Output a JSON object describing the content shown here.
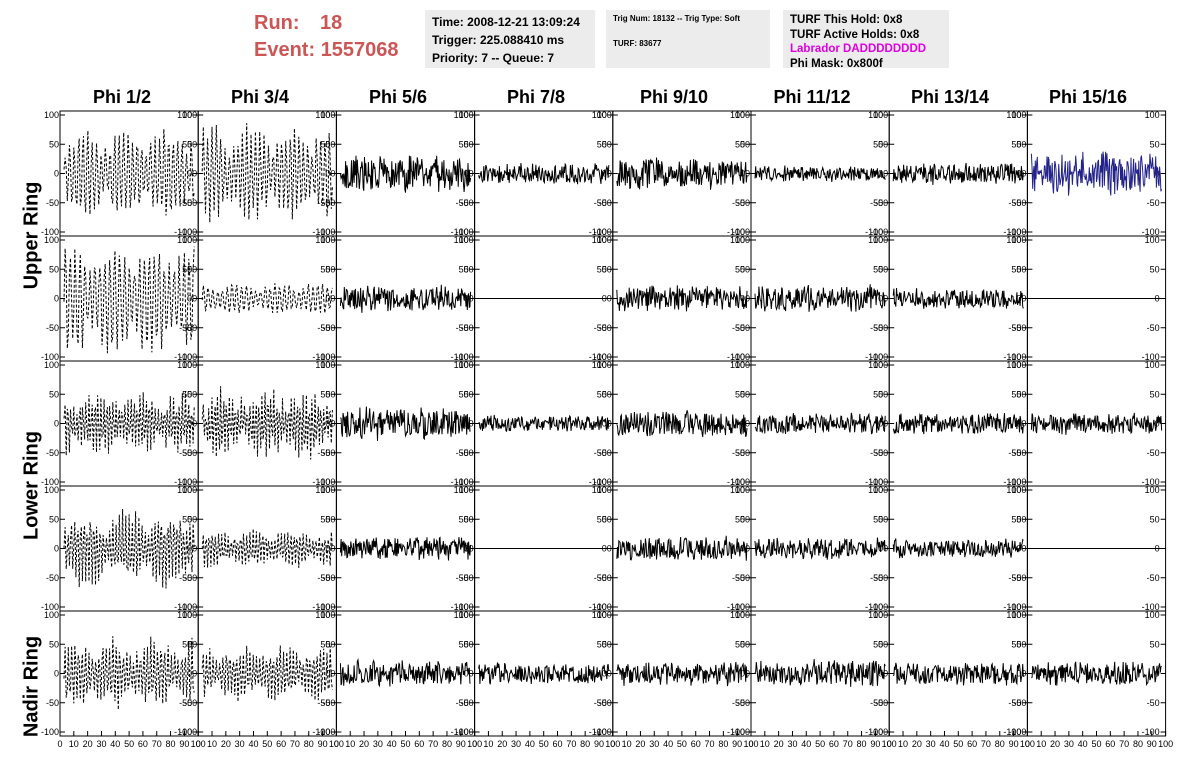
{
  "header": {
    "run_label": "Run:",
    "run_value": "18",
    "event_label": "Event:",
    "event_value": "1557068"
  },
  "info_time": {
    "time": "Time: 2008-12-21 13:09:24",
    "trigger": "Trigger: 225.088410 ms",
    "priority": "Priority: 7 -- Queue: 7"
  },
  "info_trig": {
    "trig": "Trig Num: 18132 -- Trig Type: Soft",
    "turf": "TURF: 83677"
  },
  "info_turf": {
    "hold": "TURF This Hold: 0x8",
    "active": "TURF Active Holds: 0x8",
    "labrador": "Labrador DADDDDDDDD",
    "phimask": "Phi Mask: 0x800f",
    "labrador_color": "#e000e0"
  },
  "phi_headers": [
    "Phi 1/2",
    "Phi 3/4",
    "Phi 5/6",
    "Phi 7/8",
    "Phi 9/10",
    "Phi 11/12",
    "Phi 13/14",
    "Phi 15/16"
  ],
  "ring_labels": [
    "Upper Ring",
    "Lower Ring",
    "Nadir Ring"
  ],
  "y_tick_labels": [
    "100",
    "50",
    "0",
    "-50",
    "-100"
  ],
  "x_tick_labels": [
    "0",
    "10",
    "20",
    "30",
    "40",
    "50",
    "60",
    "70",
    "80",
    "90",
    "100"
  ],
  "colors": {
    "trace": "#000000",
    "highlight_trace": "#22228a",
    "run_text": "#cc5555",
    "info_bg": "#ececec"
  },
  "chart_data": {
    "type": "line",
    "x_range": [
      0,
      100
    ],
    "y_range": [
      -100,
      100
    ],
    "rows": 5,
    "cols": 8,
    "dashed_columns": [
      0,
      1
    ],
    "flat_cells": [
      [
        1,
        3
      ],
      [
        1,
        7
      ],
      [
        3,
        3
      ],
      [
        3,
        7
      ]
    ],
    "highlight_cells": [
      [
        0,
        7
      ]
    ],
    "amplitudes": [
      [
        70,
        75,
        35,
        20,
        30,
        15,
        20,
        40
      ],
      [
        85,
        25,
        25,
        0,
        25,
        25,
        20,
        0
      ],
      [
        50,
        55,
        30,
        15,
        25,
        20,
        20,
        20
      ],
      [
        60,
        30,
        22,
        0,
        22,
        20,
        18,
        0
      ],
      [
        55,
        45,
        25,
        20,
        22,
        25,
        22,
        22
      ]
    ]
  }
}
